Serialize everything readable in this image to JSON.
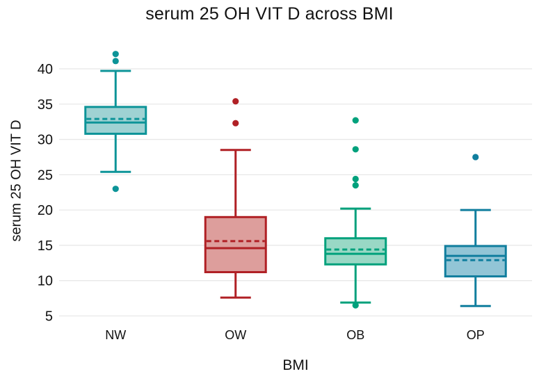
{
  "chart_data": {
    "type": "box",
    "title": "serum 25 OH VIT D across BMI",
    "xlabel": "BMI",
    "ylabel": "serum 25 OH VIT D",
    "categories": [
      "NW",
      "OW",
      "OB",
      "OP"
    ],
    "y_ticks": [
      5,
      10,
      15,
      20,
      25,
      30,
      35,
      40
    ],
    "ylim": [
      3.5,
      44.5
    ],
    "grid": true,
    "legend": "none",
    "mean_line_style": "dashed",
    "median_line_style": "solid",
    "colors": {
      "grid": "#e8e8e8",
      "text": "#111111"
    },
    "series": [
      {
        "name": "NW",
        "color": "#0D9498",
        "fill": "#9FD2D3",
        "q1": 30.8,
        "median": 32.4,
        "mean": 32.9,
        "q3": 34.6,
        "whisker_low": 25.4,
        "whisker_high": 39.7,
        "outliers": [
          42.1,
          41.1,
          23.0
        ]
      },
      {
        "name": "OW",
        "color": "#B02025",
        "fill": "#DD9E9C",
        "q1": 11.2,
        "median": 14.6,
        "mean": 15.6,
        "q3": 19.0,
        "whisker_low": 7.6,
        "whisker_high": 28.5,
        "outliers": [
          35.4,
          32.3
        ]
      },
      {
        "name": "OB",
        "color": "#00A17C",
        "fill": "#99D8C5",
        "q1": 12.3,
        "median": 13.8,
        "mean": 14.4,
        "q3": 16.0,
        "whisker_low": 6.9,
        "whisker_high": 20.2,
        "outliers": [
          32.7,
          28.6,
          24.4,
          23.5,
          6.5
        ]
      },
      {
        "name": "OP",
        "color": "#107E9E",
        "fill": "#92C5D6",
        "q1": 10.6,
        "median": 13.5,
        "mean": 12.9,
        "q3": 14.9,
        "whisker_low": 6.4,
        "whisker_high": 20.0,
        "outliers": [
          27.5
        ]
      }
    ]
  }
}
